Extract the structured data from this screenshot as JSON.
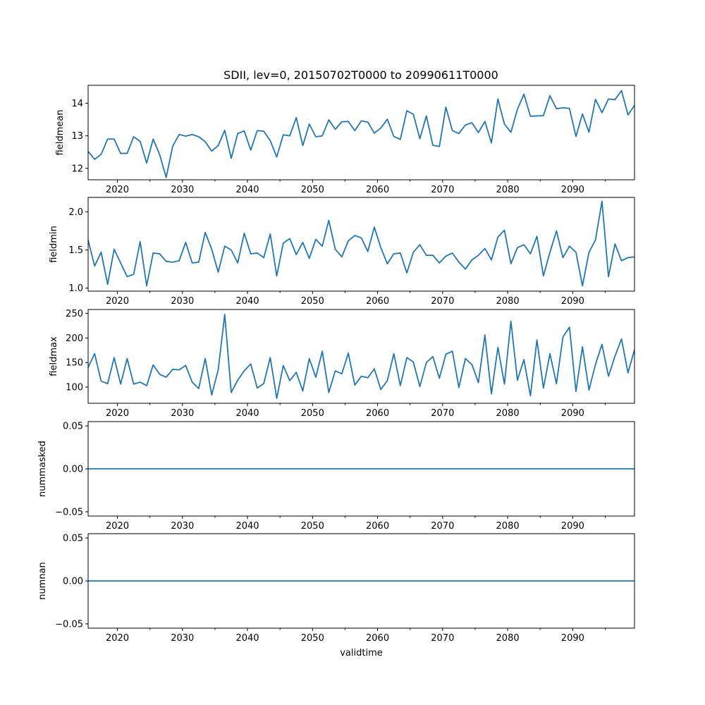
{
  "figure": {
    "title": "SDII, lev=0, 20150702T0000 to 20990611T0000"
  },
  "chart_data": [
    {
      "type": "line",
      "ylabel": "fieldmean",
      "xlabel": "",
      "xlim": [
        2015.5,
        2099.5
      ],
      "ylim": [
        11.65,
        14.55
      ],
      "yticks": [
        12,
        13,
        14
      ],
      "ytick_labels": [
        "12",
        "13",
        "14"
      ],
      "xticks": [
        2020,
        2030,
        2040,
        2050,
        2060,
        2070,
        2080,
        2090
      ],
      "xtick_labels": [
        "2020",
        "2030",
        "2040",
        "2050",
        "2060",
        "2070",
        "2080",
        "2090"
      ],
      "show_xtick_labels": true,
      "grid": false,
      "series": [
        {
          "x_start": 2015.5,
          "x_step": 1,
          "values": [
            12.52,
            12.28,
            12.43,
            12.9,
            12.9,
            12.46,
            12.46,
            12.97,
            12.83,
            12.16,
            12.9,
            12.42,
            11.72,
            12.68,
            13.04,
            12.99,
            13.04,
            12.97,
            12.82,
            12.53,
            12.7,
            13.17,
            12.31,
            13.07,
            13.15,
            12.56,
            13.16,
            13.14,
            12.85,
            12.35,
            13.03,
            13.0,
            13.56,
            12.7,
            13.36,
            12.97,
            13.0,
            13.49,
            13.2,
            13.43,
            13.44,
            13.16,
            13.46,
            13.42,
            13.08,
            13.24,
            13.51,
            12.98,
            12.89,
            13.77,
            13.66,
            12.91,
            13.61,
            12.71,
            12.67,
            13.88,
            13.16,
            13.07,
            13.33,
            13.4,
            13.1,
            13.44,
            12.78,
            14.13,
            13.36,
            13.11,
            13.81,
            14.28,
            13.6,
            13.61,
            13.62,
            14.23,
            13.83,
            13.86,
            13.84,
            12.98,
            13.67,
            13.11,
            14.12,
            13.71,
            14.13,
            14.11,
            14.39,
            13.64,
            13.93
          ]
        }
      ]
    },
    {
      "type": "line",
      "ylabel": "fieldmin",
      "xlabel": "",
      "xlim": [
        2015.5,
        2099.5
      ],
      "ylim": [
        0.96,
        2.19
      ],
      "yticks": [
        1.0,
        1.5,
        2.0
      ],
      "ytick_labels": [
        "1.0",
        "1.5",
        "2.0"
      ],
      "xticks": [
        2020,
        2030,
        2040,
        2050,
        2060,
        2070,
        2080,
        2090
      ],
      "xtick_labels": [
        "2020",
        "2030",
        "2040",
        "2050",
        "2060",
        "2070",
        "2080",
        "2090"
      ],
      "show_xtick_labels": true,
      "grid": false,
      "series": [
        {
          "x_start": 2015.5,
          "x_step": 1,
          "values": [
            1.63,
            1.29,
            1.47,
            1.05,
            1.51,
            1.33,
            1.15,
            1.18,
            1.61,
            1.03,
            1.46,
            1.45,
            1.35,
            1.34,
            1.36,
            1.6,
            1.33,
            1.34,
            1.73,
            1.51,
            1.21,
            1.55,
            1.5,
            1.33,
            1.72,
            1.45,
            1.46,
            1.4,
            1.71,
            1.16,
            1.59,
            1.65,
            1.44,
            1.6,
            1.39,
            1.64,
            1.55,
            1.89,
            1.51,
            1.41,
            1.62,
            1.69,
            1.66,
            1.48,
            1.8,
            1.53,
            1.32,
            1.45,
            1.46,
            1.2,
            1.47,
            1.57,
            1.43,
            1.43,
            1.33,
            1.42,
            1.46,
            1.34,
            1.25,
            1.37,
            1.43,
            1.52,
            1.37,
            1.67,
            1.76,
            1.32,
            1.53,
            1.57,
            1.45,
            1.68,
            1.16,
            1.47,
            1.75,
            1.4,
            1.55,
            1.47,
            1.03,
            1.47,
            1.63,
            2.14,
            1.15,
            1.58,
            1.36,
            1.4,
            1.41
          ]
        }
      ]
    },
    {
      "type": "line",
      "ylabel": "fieldmax",
      "xlabel": "",
      "xlim": [
        2015.5,
        2099.5
      ],
      "ylim": [
        67,
        258
      ],
      "yticks": [
        100,
        150,
        200,
        250
      ],
      "ytick_labels": [
        "100",
        "150",
        "200",
        "250"
      ],
      "xticks": [
        2020,
        2030,
        2040,
        2050,
        2060,
        2070,
        2080,
        2090
      ],
      "xtick_labels": [
        "2020",
        "2030",
        "2040",
        "2050",
        "2060",
        "2070",
        "2080",
        "2090"
      ],
      "show_xtick_labels": true,
      "grid": false,
      "series": [
        {
          "x_start": 2015.5,
          "x_step": 1,
          "values": [
            140,
            168,
            112,
            107,
            160,
            106,
            158,
            106,
            110,
            103,
            145,
            126,
            120,
            136,
            135,
            144,
            110,
            97,
            158,
            84,
            135,
            248,
            89,
            114,
            133,
            147,
            98,
            107,
            160,
            77,
            144,
            113,
            130,
            92,
            158,
            120,
            173,
            89,
            133,
            127,
            169,
            104,
            122,
            119,
            137,
            95,
            113,
            168,
            103,
            160,
            151,
            101,
            150,
            162,
            118,
            167,
            173,
            99,
            158,
            146,
            109,
            206,
            86,
            181,
            106,
            234,
            114,
            156,
            82,
            196,
            98,
            168,
            107,
            202,
            222,
            91,
            182,
            94,
            146,
            187,
            122,
            163,
            198,
            129,
            176
          ]
        }
      ]
    },
    {
      "type": "line",
      "ylabel": "nummasked",
      "xlabel": "",
      "xlim": [
        2015.5,
        2099.5
      ],
      "ylim": [
        -0.055,
        0.055
      ],
      "yticks": [
        -0.05,
        0.0,
        0.05
      ],
      "ytick_labels": [
        "−0.05",
        "0.00",
        "0.05"
      ],
      "xticks": [
        2020,
        2030,
        2040,
        2050,
        2060,
        2070,
        2080,
        2090
      ],
      "xtick_labels": [
        "2020",
        "2030",
        "2040",
        "2050",
        "2060",
        "2070",
        "2080",
        "2090"
      ],
      "show_xtick_labels": true,
      "grid": false,
      "series": [
        {
          "x_start": 2015.5,
          "x_step": 84,
          "values": [
            0,
            0
          ]
        }
      ]
    },
    {
      "type": "line",
      "ylabel": "numnan",
      "xlabel": "validtime",
      "xlim": [
        2015.5,
        2099.5
      ],
      "ylim": [
        -0.055,
        0.055
      ],
      "yticks": [
        -0.05,
        0.0,
        0.05
      ],
      "ytick_labels": [
        "−0.05",
        "0.00",
        "0.05"
      ],
      "xticks": [
        2020,
        2030,
        2040,
        2050,
        2060,
        2070,
        2080,
        2090
      ],
      "xtick_labels": [
        "2020",
        "2030",
        "2040",
        "2050",
        "2060",
        "2070",
        "2080",
        "2090"
      ],
      "show_xtick_labels": true,
      "grid": false,
      "series": [
        {
          "x_start": 2015.5,
          "x_step": 84,
          "values": [
            0,
            0
          ]
        }
      ]
    }
  ],
  "colors": {
    "line": "#1f77b4",
    "frame": "#000000",
    "background": "#ffffff"
  }
}
